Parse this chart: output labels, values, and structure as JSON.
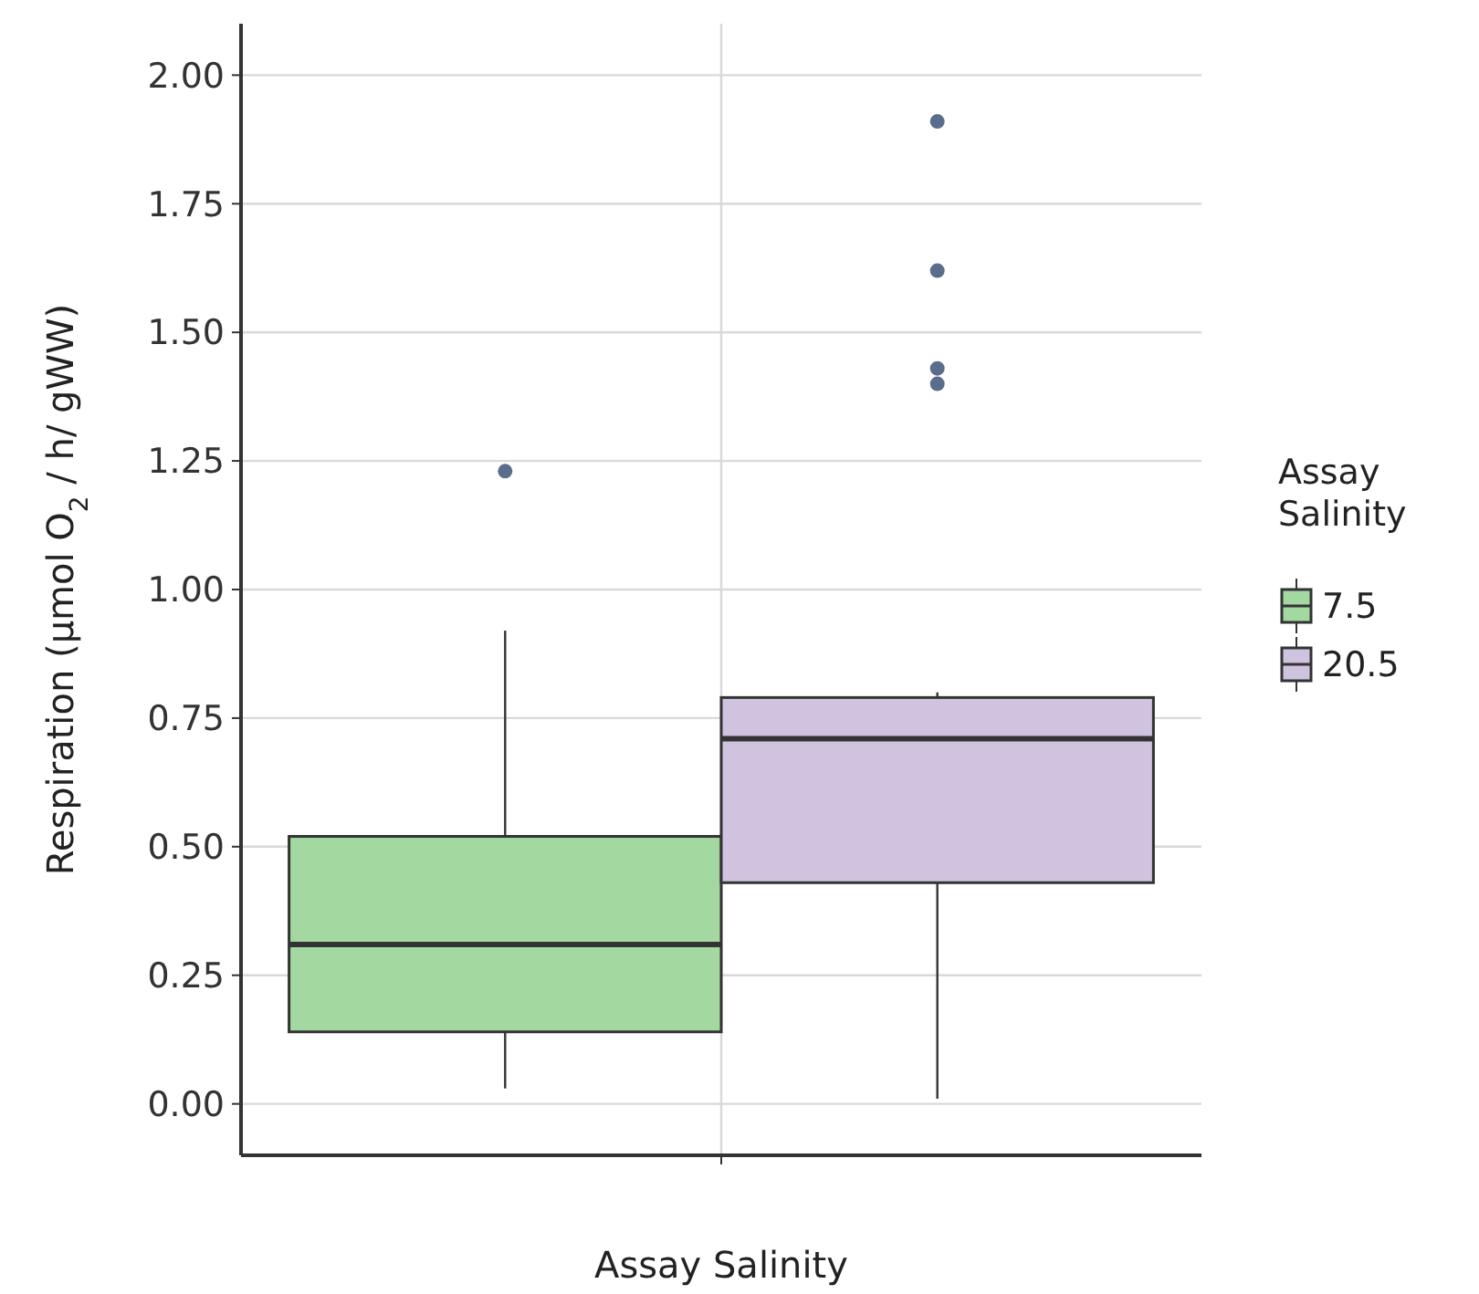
{
  "chart_data": {
    "type": "box",
    "xlabel": "Assay Salinity",
    "ylabel": "Respiration (μmol O$_{2}$ / h/ gWW)",
    "legend_title": "Assay Salinity",
    "categories": [
      null
    ],
    "series": [
      {
        "name": "7.5",
        "color": "#a3d8a0",
        "boxes": [
          {
            "low": 0.03,
            "q1": 0.14,
            "median": 0.31,
            "q3": 0.52,
            "high": 0.92,
            "outliers": [
              1.23
            ]
          }
        ]
      },
      {
        "name": "20.5",
        "color": "#cfc3e0",
        "boxes": [
          {
            "low": 0.01,
            "q1": 0.43,
            "median": 0.71,
            "q3": 0.79,
            "high": 0.8,
            "outliers": [
              1.91,
              1.62,
              1.43,
              1.4
            ]
          }
        ]
      }
    ],
    "ylim": [
      -0.1,
      2.1
    ],
    "yticks": [
      {
        "value": 0,
        "label": "0.00"
      },
      {
        "value": 0.25,
        "label": "0.25"
      },
      {
        "value": 0.5,
        "label": "0.50"
      },
      {
        "value": 0.75,
        "label": "0.75"
      },
      {
        "value": 1,
        "label": "1.00"
      },
      {
        "value": 1.25,
        "label": "1.25"
      },
      {
        "value": 1.5,
        "label": "1.50"
      },
      {
        "value": 1.75,
        "label": "1.75"
      },
      {
        "value": 2,
        "label": "2.00"
      }
    ],
    "grid": true,
    "legend": "right"
  }
}
